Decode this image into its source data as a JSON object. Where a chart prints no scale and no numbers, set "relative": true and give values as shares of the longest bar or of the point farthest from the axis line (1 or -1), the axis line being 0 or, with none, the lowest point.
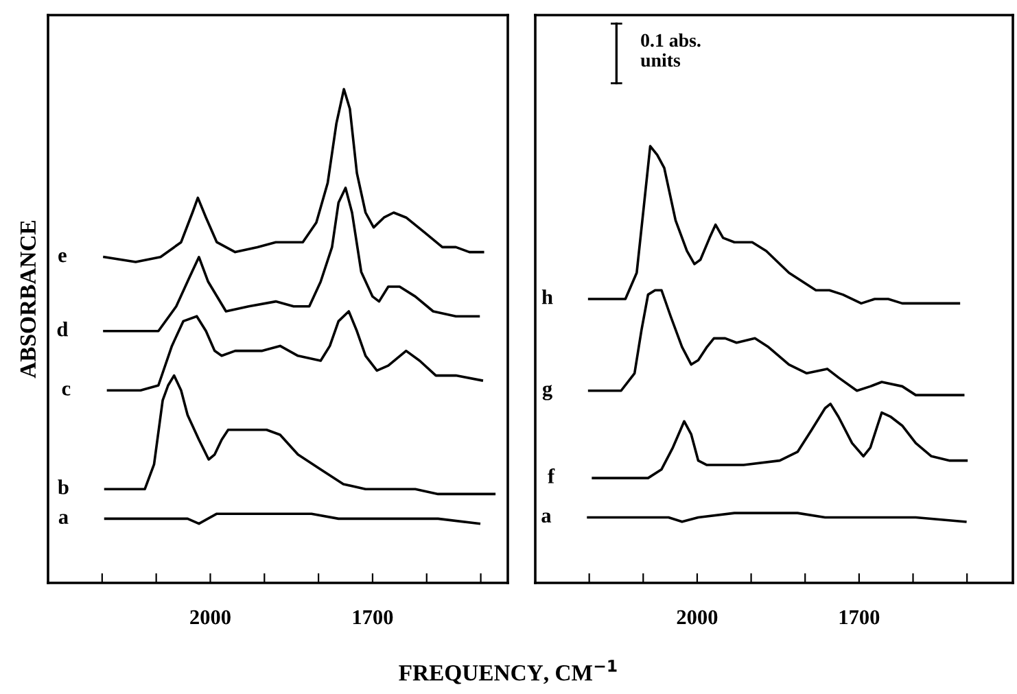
{
  "chart_data": [
    {
      "type": "line",
      "relative": true,
      "ylabel": "ABSORBANCE",
      "xlim": [
        2300,
        1450
      ],
      "xticks": [
        {
          "value": 2200,
          "label": null
        },
        {
          "value": 2100,
          "label": null
        },
        2000,
        {
          "value": 1900,
          "label": null
        },
        {
          "value": 1800,
          "label": null
        },
        1700,
        {
          "value": 1600,
          "label": null
        },
        {
          "value": 1500,
          "label": null
        }
      ],
      "tick_labels": "x",
      "grid": false,
      "legend": false,
      "series": [
        {
          "name": "e",
          "color": "#000000",
          "x": [
            2196,
            2138,
            2092,
            2054,
            2033,
            2023,
            2008,
            1988,
            1954,
            1913,
            1879,
            1829,
            1804,
            1783,
            1767,
            1753,
            1742,
            1729,
            1713,
            1698,
            1679,
            1661,
            1638,
            1604,
            1571,
            1546,
            1521,
            1496
          ],
          "values": [
            0.66,
            0.65,
            0.66,
            0.69,
            0.75,
            0.78,
            0.74,
            0.69,
            0.67,
            0.68,
            0.69,
            0.69,
            0.73,
            0.81,
            0.93,
            1.0,
            0.96,
            0.83,
            0.75,
            0.72,
            0.74,
            0.75,
            0.74,
            0.71,
            0.68,
            0.68,
            0.67,
            0.67
          ]
        },
        {
          "name": "d",
          "color": "#000000",
          "x": [
            2196,
            2096,
            2063,
            2038,
            2021,
            2004,
            1971,
            1929,
            1879,
            1846,
            1817,
            1796,
            1775,
            1763,
            1750,
            1738,
            1721,
            1700,
            1688,
            1671,
            1650,
            1621,
            1588,
            1546,
            1504
          ],
          "values": [
            0.51,
            0.51,
            0.56,
            0.62,
            0.66,
            0.61,
            0.55,
            0.56,
            0.57,
            0.56,
            0.56,
            0.61,
            0.68,
            0.77,
            0.8,
            0.75,
            0.63,
            0.58,
            0.57,
            0.6,
            0.6,
            0.58,
            0.55,
            0.54,
            0.54
          ]
        },
        {
          "name": "c",
          "color": "#000000",
          "x": [
            2189,
            2129,
            2096,
            2071,
            2050,
            2025,
            2008,
            1992,
            1979,
            1954,
            1929,
            1904,
            1871,
            1838,
            1796,
            1779,
            1763,
            1744,
            1729,
            1713,
            1692,
            1671,
            1638,
            1613,
            1583,
            1546,
            1498
          ],
          "values": [
            0.39,
            0.39,
            0.4,
            0.48,
            0.53,
            0.54,
            0.51,
            0.47,
            0.46,
            0.47,
            0.47,
            0.47,
            0.48,
            0.46,
            0.45,
            0.48,
            0.53,
            0.55,
            0.51,
            0.46,
            0.43,
            0.44,
            0.47,
            0.45,
            0.42,
            0.42,
            0.41
          ]
        },
        {
          "name": "b",
          "color": "#000000",
          "x": [
            2194,
            2121,
            2104,
            2088,
            2078,
            2067,
            2054,
            2042,
            2021,
            2003,
            1992,
            1979,
            1967,
            1929,
            1896,
            1871,
            1838,
            1796,
            1754,
            1713,
            1663,
            1621,
            1579,
            1513,
            1475
          ],
          "values": [
            0.19,
            0.19,
            0.24,
            0.37,
            0.4,
            0.42,
            0.39,
            0.34,
            0.29,
            0.25,
            0.26,
            0.29,
            0.31,
            0.31,
            0.31,
            0.3,
            0.26,
            0.23,
            0.2,
            0.19,
            0.19,
            0.19,
            0.18,
            0.18,
            0.18
          ]
        },
        {
          "name": "a",
          "color": "#000000",
          "x": [
            2194,
            2063,
            2042,
            2021,
            1988,
            1929,
            1863,
            1813,
            1763,
            1696,
            1629,
            1579,
            1503
          ],
          "values": [
            0.13,
            0.13,
            0.13,
            0.12,
            0.14,
            0.14,
            0.14,
            0.14,
            0.13,
            0.13,
            0.13,
            0.13,
            0.12
          ]
        }
      ]
    },
    {
      "type": "line",
      "relative": true,
      "xlabel": "FREQUENCY, CM$^{−1}$",
      "annotations": [
        "0.1 abs.\nunits"
      ],
      "xlim": [
        2300,
        1415
      ],
      "xticks": [
        {
          "value": 2200,
          "label": null
        },
        {
          "value": 2100,
          "label": null
        },
        2000,
        {
          "value": 1900,
          "label": null
        },
        {
          "value": 1800,
          "label": null
        },
        1700,
        {
          "value": 1600,
          "label": null
        },
        {
          "value": 1500,
          "label": null
        }
      ],
      "tick_labels": "x",
      "grid": false,
      "legend": false,
      "series": [
        {
          "name": "h",
          "color": "#000000",
          "x": [
            2200,
            2133,
            2112,
            2099,
            2087,
            2074,
            2061,
            2040,
            2019,
            2005,
            1994,
            1977,
            1966,
            1952,
            1931,
            1898,
            1872,
            1830,
            1780,
            1755,
            1730,
            1696,
            1671,
            1646,
            1620,
            1595,
            1515
          ],
          "values": [
            0.65,
            0.65,
            0.71,
            0.86,
            1.0,
            0.98,
            0.95,
            0.83,
            0.76,
            0.73,
            0.74,
            0.79,
            0.82,
            0.79,
            0.78,
            0.78,
            0.76,
            0.71,
            0.67,
            0.67,
            0.66,
            0.64,
            0.65,
            0.65,
            0.64,
            0.64,
            0.64
          ]
        },
        {
          "name": "g",
          "color": "#000000",
          "x": [
            2200,
            2141,
            2116,
            2103,
            2091,
            2078,
            2066,
            2049,
            2028,
            2011,
            1998,
            1982,
            1969,
            1948,
            1927,
            1893,
            1868,
            1830,
            1797,
            1759,
            1738,
            1704,
            1679,
            1658,
            1620,
            1595,
            1566,
            1532,
            1507
          ],
          "values": [
            0.44,
            0.44,
            0.48,
            0.58,
            0.66,
            0.67,
            0.67,
            0.61,
            0.54,
            0.5,
            0.51,
            0.54,
            0.56,
            0.56,
            0.55,
            0.56,
            0.54,
            0.5,
            0.48,
            0.49,
            0.47,
            0.44,
            0.45,
            0.46,
            0.45,
            0.43,
            0.43,
            0.43,
            0.43
          ]
        },
        {
          "name": "f",
          "color": "#000000",
          "x": [
            2193,
            2158,
            2091,
            2066,
            2045,
            2024,
            2011,
            1998,
            1982,
            1914,
            1847,
            1814,
            1788,
            1763,
            1753,
            1738,
            1713,
            1692,
            1679,
            1666,
            1658,
            1641,
            1620,
            1595,
            1566,
            1532,
            1501
          ],
          "values": [
            0.24,
            0.24,
            0.24,
            0.26,
            0.31,
            0.37,
            0.34,
            0.28,
            0.27,
            0.27,
            0.28,
            0.3,
            0.35,
            0.4,
            0.41,
            0.38,
            0.32,
            0.29,
            0.31,
            0.36,
            0.39,
            0.38,
            0.36,
            0.32,
            0.29,
            0.28,
            0.28
          ]
        },
        {
          "name": "a",
          "color": "#000000",
          "x": [
            2202,
            2053,
            2028,
            1998,
            1931,
            1864,
            1814,
            1763,
            1696,
            1654,
            1595,
            1503
          ],
          "values": [
            0.15,
            0.15,
            0.14,
            0.15,
            0.16,
            0.16,
            0.16,
            0.15,
            0.15,
            0.15,
            0.15,
            0.14
          ]
        }
      ]
    }
  ]
}
